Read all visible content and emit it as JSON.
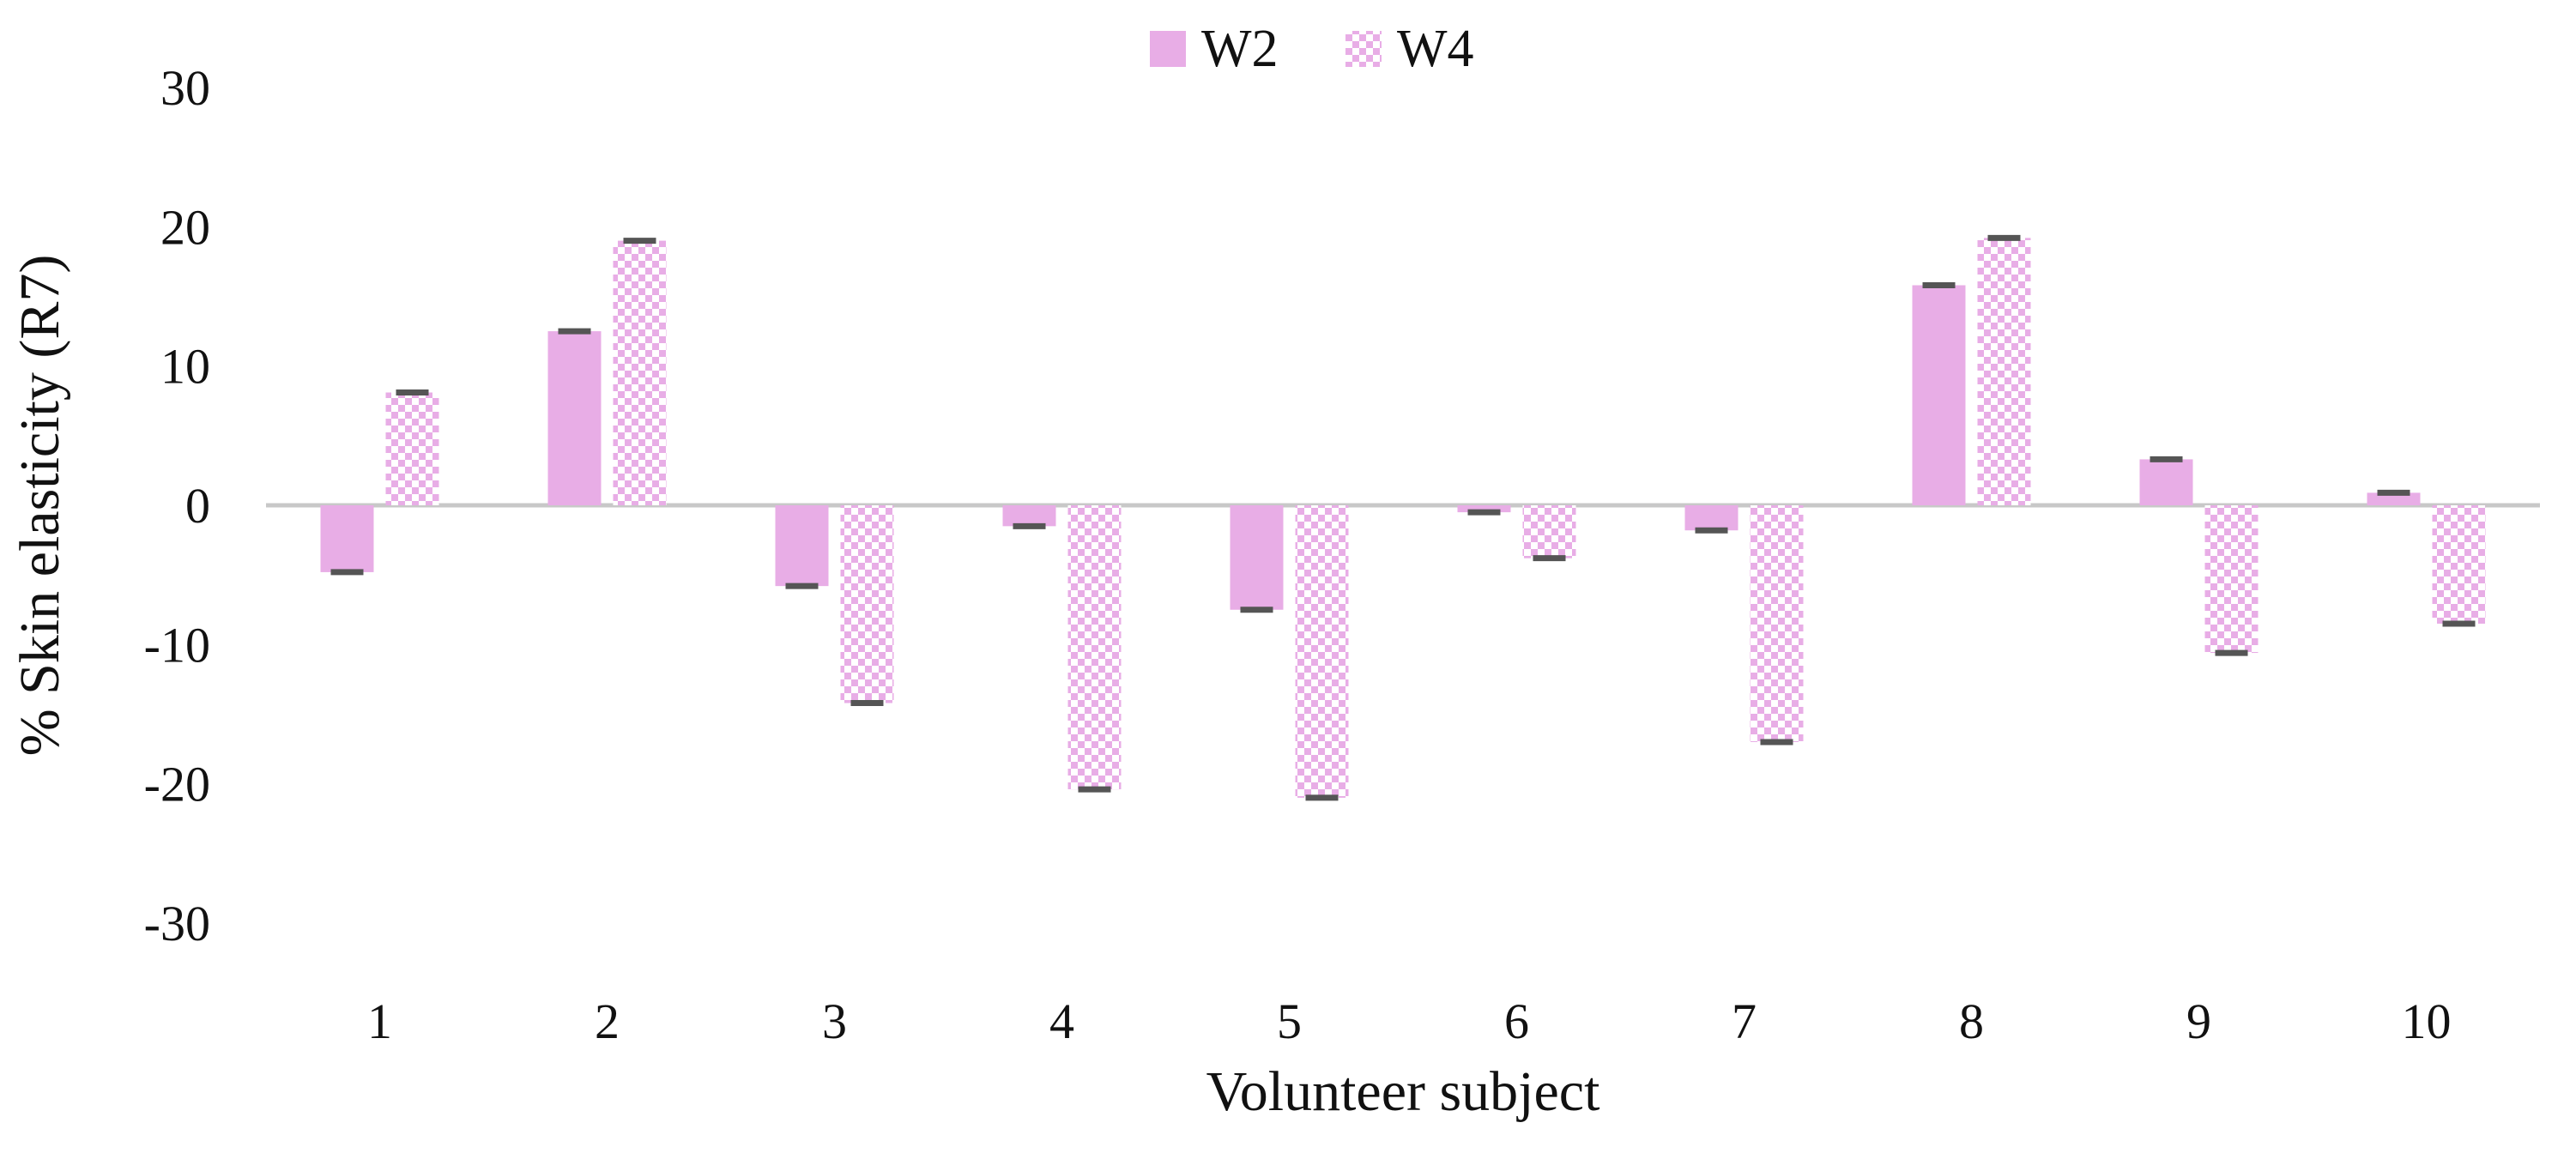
{
  "chart_data": {
    "type": "bar",
    "title": "",
    "xlabel": "Volunteer subject",
    "ylabel": "% Skin elasticity (R7)",
    "categories": [
      "1",
      "2",
      "3",
      "4",
      "5",
      "6",
      "7",
      "8",
      "9",
      "10"
    ],
    "ylim": [
      -30,
      30
    ],
    "yticks": [
      30,
      20,
      10,
      0,
      -10,
      -20,
      -30
    ],
    "ytick_labels": [
      "30",
      "20",
      "10",
      "0",
      "-10",
      "-20",
      "-30"
    ],
    "grid": false,
    "legend_position": "top-center",
    "error_bars": true,
    "series": [
      {
        "name": "W2",
        "values": [
          -4.8,
          12.5,
          -5.8,
          -1.5,
          -7.5,
          -0.5,
          -1.8,
          15.8,
          3.3,
          0.9
        ],
        "color": "#e8ade6",
        "pattern": "solid"
      },
      {
        "name": "W4",
        "values": [
          8.1,
          19.0,
          -14.2,
          -20.4,
          -21.0,
          -3.8,
          -17.0,
          19.2,
          -10.6,
          -8.5
        ],
        "color": "#e8ade6",
        "pattern": "checkered"
      }
    ],
    "colors": {
      "bar": "#e8ade6",
      "pattern_fill": "#ffffff",
      "error_bar": "#555555",
      "zero_line": "#c8c8c8"
    }
  }
}
